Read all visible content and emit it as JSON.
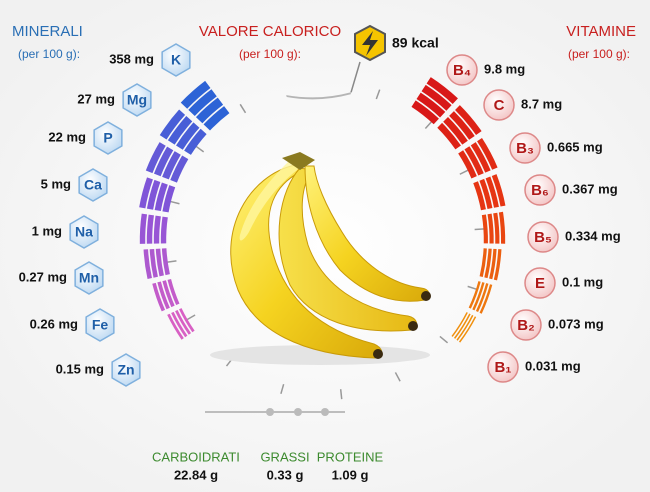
{
  "minerals": {
    "title": "MINERALI",
    "subtitle": "(per 100 g):",
    "items": [
      {
        "symbol": "K",
        "amount": "358 mg"
      },
      {
        "symbol": "Mg",
        "amount": "27 mg"
      },
      {
        "symbol": "P",
        "amount": "22 mg"
      },
      {
        "symbol": "Ca",
        "amount": "5 mg"
      },
      {
        "symbol": "Na",
        "amount": "1 mg"
      },
      {
        "symbol": "Mn",
        "amount": "0.27 mg"
      },
      {
        "symbol": "Fe",
        "amount": "0.26 mg"
      },
      {
        "symbol": "Zn",
        "amount": "0.15 mg"
      }
    ]
  },
  "calories": {
    "title": "VALORE CALORICO",
    "subtitle": "(per 100 g):",
    "value": "89 kcal"
  },
  "vitamins": {
    "title": "VITAMINE",
    "subtitle": "(per 100 g):",
    "items": [
      {
        "symbol": "B₄",
        "amount": "9.8 mg"
      },
      {
        "symbol": "C",
        "amount": "8.7 mg"
      },
      {
        "symbol": "B₃",
        "amount": "0.665 mg"
      },
      {
        "symbol": "B₆",
        "amount": "0.367 mg"
      },
      {
        "symbol": "B₅",
        "amount": "0.334 mg"
      },
      {
        "symbol": "E",
        "amount": "0.1 mg"
      },
      {
        "symbol": "B₂",
        "amount": "0.073 mg"
      },
      {
        "symbol": "B₁",
        "amount": "0.031 mg"
      }
    ]
  },
  "macros": [
    {
      "name": "CARBOIDRATI",
      "amount": "22.84 g"
    },
    {
      "name": "GRASSI",
      "amount": "0.33 g"
    },
    {
      "name": "PROTEINE",
      "amount": "1.09 g"
    }
  ]
}
